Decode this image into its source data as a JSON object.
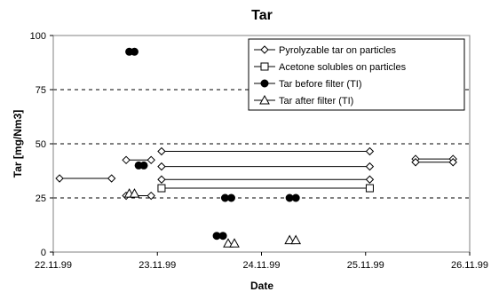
{
  "chart_data": {
    "type": "scatter",
    "title": "Tar",
    "xlabel": "Date",
    "ylabel": "Tar [mg/Nm3]",
    "xlim": [
      "22.11.99",
      "26.11.99"
    ],
    "ylim": [
      0,
      100
    ],
    "x_ticks": [
      "22.11.99",
      "23.11.99",
      "24.11.99",
      "25.11.99",
      "26.11.99"
    ],
    "y_ticks": [
      0,
      25,
      50,
      75,
      100
    ],
    "grid": "horizontal dashed",
    "legend_position": "top-right",
    "series": [
      {
        "name": "Pyrolyzable tar on particles",
        "marker": "diamond",
        "color": "#000000",
        "segments": [
          {
            "x": [
              22.06,
              22.56
            ],
            "y": [
              34,
              34
            ]
          },
          {
            "x": [
              22.7,
              22.94
            ],
            "y": [
              42.5,
              42.5
            ]
          },
          {
            "x": [
              22.7,
              22.94
            ],
            "y": [
              26,
              26
            ]
          },
          {
            "x": [
              23.04,
              25.04
            ],
            "y": [
              46.5,
              46.5
            ]
          },
          {
            "x": [
              23.04,
              25.04
            ],
            "y": [
              39.5,
              39.5
            ]
          },
          {
            "x": [
              23.04,
              25.04
            ],
            "y": [
              33.5,
              33.5
            ]
          },
          {
            "x": [
              25.48,
              25.84
            ],
            "y": [
              43,
              43
            ]
          },
          {
            "x": [
              25.48,
              25.84
            ],
            "y": [
              41.5,
              41.5
            ]
          }
        ]
      },
      {
        "name": "Acetone solubles on particles",
        "marker": "square",
        "color": "#000000",
        "segments": [
          {
            "x": [
              23.04,
              25.04
            ],
            "y": [
              29.5,
              29.5
            ]
          }
        ]
      },
      {
        "name": "Tar before filter (TI)",
        "marker": "circle",
        "color": "#000000",
        "points": [
          {
            "x": 22.73,
            "y": 92.5
          },
          {
            "x": 22.78,
            "y": 92.5
          },
          {
            "x": 22.82,
            "y": 40
          },
          {
            "x": 22.87,
            "y": 40
          },
          {
            "x": 23.57,
            "y": 7.5
          },
          {
            "x": 23.63,
            "y": 7.5
          },
          {
            "x": 23.65,
            "y": 25
          },
          {
            "x": 23.71,
            "y": 25
          },
          {
            "x": 24.27,
            "y": 25
          },
          {
            "x": 24.33,
            "y": 25
          }
        ]
      },
      {
        "name": "Tar after filter (TI)",
        "marker": "triangle",
        "color": "#000000",
        "points": [
          {
            "x": 22.73,
            "y": 27
          },
          {
            "x": 22.78,
            "y": 27
          },
          {
            "x": 23.68,
            "y": 4
          },
          {
            "x": 23.74,
            "y": 4
          },
          {
            "x": 24.27,
            "y": 5.5
          },
          {
            "x": 24.33,
            "y": 5.5
          }
        ]
      }
    ]
  }
}
